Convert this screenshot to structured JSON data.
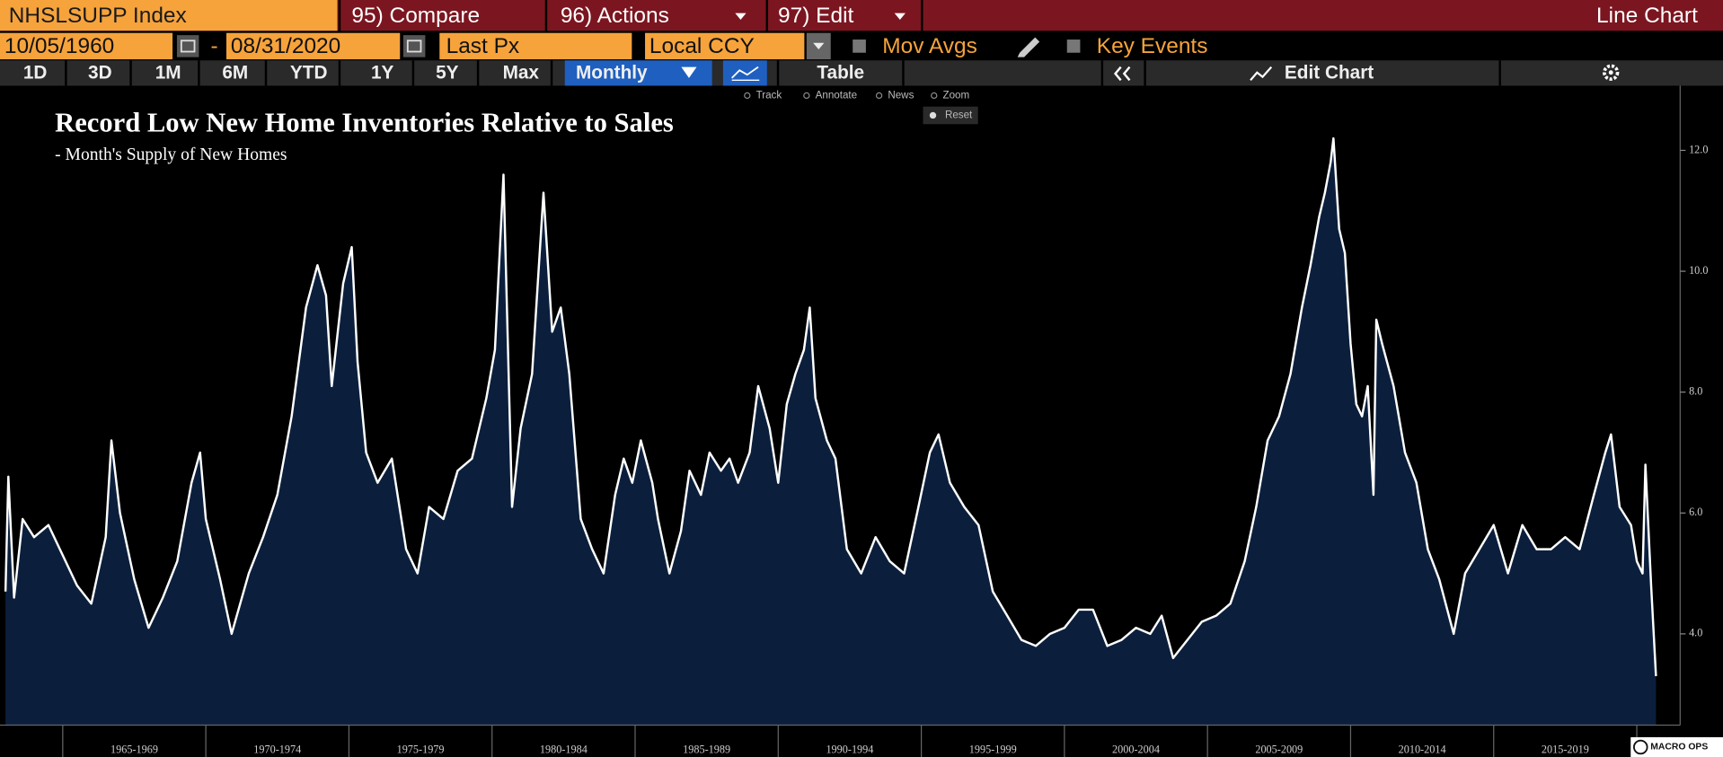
{
  "header": {
    "ticker": "NHSLSUPP Index",
    "menus": [
      "95) Compare",
      "96) Actions",
      "97) Edit"
    ],
    "view": "Line Chart"
  },
  "controls": {
    "start_date": "10/05/1960",
    "separator": "-",
    "end_date": "08/31/2020",
    "field": "Last Px",
    "currency": "Local CCY",
    "mov_avgs": "Mov Avgs",
    "key_events": "Key Events"
  },
  "periods": [
    "1D",
    "3D",
    "1M",
    "6M",
    "YTD",
    "1Y",
    "5Y",
    "Max"
  ],
  "frequency": "Monthly",
  "table": "Table",
  "edit_chart": "Edit Chart",
  "tools": [
    "Track",
    "Annotate",
    "News",
    "Zoom"
  ],
  "reset": "Reset",
  "watermark": "MACRO OPS",
  "chart_data": {
    "type": "line",
    "title": "Record Low New Home Inventories Relative to Sales",
    "subtitle": "- Month's Supply of New Homes",
    "color": "#ffffff",
    "fill": "#0b1f3d",
    "x": [
      1963.0,
      1963.1,
      1963.3,
      1963.6,
      1964.0,
      1964.5,
      1965.0,
      1965.5,
      1966.0,
      1966.5,
      1966.7,
      1967.0,
      1967.5,
      1968.0,
      1968.5,
      1969.0,
      1969.5,
      1969.8,
      1970.0,
      1970.5,
      1970.9,
      1971.5,
      1972.0,
      1972.5,
      1973.0,
      1973.5,
      1973.9,
      1974.2,
      1974.4,
      1974.8,
      1975.1,
      1975.3,
      1975.6,
      1976.0,
      1976.5,
      1977.0,
      1977.4,
      1977.8,
      1978.3,
      1978.8,
      1979.3,
      1979.8,
      1980.1,
      1980.4,
      1980.7,
      1981.0,
      1981.4,
      1981.8,
      1982.1,
      1982.4,
      1982.7,
      1983.1,
      1983.5,
      1983.9,
      1984.3,
      1984.6,
      1984.9,
      1985.2,
      1985.6,
      1985.8,
      1986.2,
      1986.6,
      1986.9,
      1987.3,
      1987.6,
      1988.0,
      1988.3,
      1988.6,
      1989.0,
      1989.3,
      1989.7,
      1990.0,
      1990.3,
      1990.6,
      1990.9,
      1991.1,
      1991.3,
      1991.7,
      1992.0,
      1992.4,
      1992.9,
      1993.4,
      1993.9,
      1994.4,
      1994.9,
      1995.3,
      1995.6,
      1996.0,
      1996.5,
      1997.0,
      1997.5,
      1998.0,
      1998.5,
      1999.0,
      1999.5,
      2000.0,
      2000.5,
      2001.0,
      2001.5,
      2002.0,
      2002.5,
      2003.0,
      2003.4,
      2003.8,
      2004.3,
      2004.8,
      2005.3,
      2005.8,
      2006.3,
      2006.7,
      2007.1,
      2007.5,
      2007.9,
      2008.3,
      2008.6,
      2008.9,
      2009.1,
      2009.3,
      2009.4,
      2009.6,
      2009.8,
      2010.0,
      2010.2,
      2010.4,
      2010.6,
      2010.8,
      2010.9,
      2011.1,
      2011.5,
      2011.9,
      2012.3,
      2012.7,
      2013.1,
      2013.6,
      2014.0,
      2014.5,
      2015.0,
      2015.5,
      2016.0,
      2016.5,
      2017.0,
      2017.5,
      2018.0,
      2018.5,
      2018.9,
      2019.1,
      2019.4,
      2019.8,
      2020.0,
      2020.2,
      2020.3,
      2020.5,
      2020.67
    ],
    "values": [
      4.7,
      6.6,
      4.6,
      5.9,
      5.6,
      5.8,
      5.3,
      4.8,
      4.5,
      5.6,
      7.2,
      6.0,
      4.9,
      4.1,
      4.6,
      5.2,
      6.5,
      7.0,
      5.9,
      4.9,
      4.0,
      5.0,
      5.6,
      6.3,
      7.6,
      9.4,
      10.1,
      9.6,
      8.1,
      9.8,
      10.4,
      8.5,
      7.0,
      6.5,
      6.9,
      5.4,
      5.0,
      6.1,
      5.9,
      6.7,
      6.9,
      7.9,
      8.7,
      11.6,
      6.1,
      7.4,
      8.3,
      11.3,
      9.0,
      9.4,
      8.3,
      5.9,
      5.4,
      5.0,
      6.3,
      6.9,
      6.5,
      7.2,
      6.5,
      5.9,
      5.0,
      5.7,
      6.7,
      6.3,
      7.0,
      6.7,
      6.9,
      6.5,
      7.0,
      8.1,
      7.4,
      6.5,
      7.8,
      8.3,
      8.7,
      9.4,
      7.9,
      7.2,
      6.9,
      5.4,
      5.0,
      5.6,
      5.2,
      5.0,
      6.1,
      7.0,
      7.3,
      6.5,
      6.1,
      5.8,
      4.7,
      4.3,
      3.9,
      3.8,
      4.0,
      4.1,
      4.4,
      4.4,
      3.8,
      3.9,
      4.1,
      4.0,
      4.3,
      3.6,
      3.9,
      4.2,
      4.3,
      4.5,
      5.2,
      6.1,
      7.2,
      7.6,
      8.3,
      9.4,
      10.1,
      10.9,
      11.3,
      11.8,
      12.2,
      10.7,
      10.3,
      8.8,
      7.8,
      7.6,
      8.1,
      6.3,
      9.2,
      8.8,
      8.1,
      7.0,
      6.5,
      5.4,
      4.9,
      4.0,
      5.0,
      5.4,
      5.8,
      5.0,
      5.8,
      5.4,
      5.4,
      5.6,
      5.4,
      6.3,
      7.0,
      7.3,
      6.1,
      5.8,
      5.2,
      5.0,
      6.8,
      4.8,
      3.3
    ],
    "xlim": [
      1963,
      2020.67
    ],
    "xticks": [
      {
        "value": 1967.5,
        "label": "1965-1969"
      },
      {
        "value": 1972.5,
        "label": "1970-1974"
      },
      {
        "value": 1977.5,
        "label": "1975-1979"
      },
      {
        "value": 1982.5,
        "label": "1980-1984"
      },
      {
        "value": 1987.5,
        "label": "1985-1989"
      },
      {
        "value": 1992.5,
        "label": "1990-1994"
      },
      {
        "value": 1997.5,
        "label": "1995-1999"
      },
      {
        "value": 2002.5,
        "label": "2000-2004"
      },
      {
        "value": 2007.5,
        "label": "2005-2009"
      },
      {
        "value": 2012.5,
        "label": "2010-2014"
      },
      {
        "value": 2017.5,
        "label": "2015-2019"
      }
    ],
    "ylim": [
      2.49,
      13.07
    ],
    "yticks": [
      {
        "value": 4,
        "label": "4.0"
      },
      {
        "value": 6,
        "label": "6.0"
      },
      {
        "value": 8,
        "label": "8.0"
      },
      {
        "value": 10,
        "label": "10.0"
      },
      {
        "value": 12,
        "label": "12.0"
      }
    ],
    "y_axis_side": "right"
  }
}
